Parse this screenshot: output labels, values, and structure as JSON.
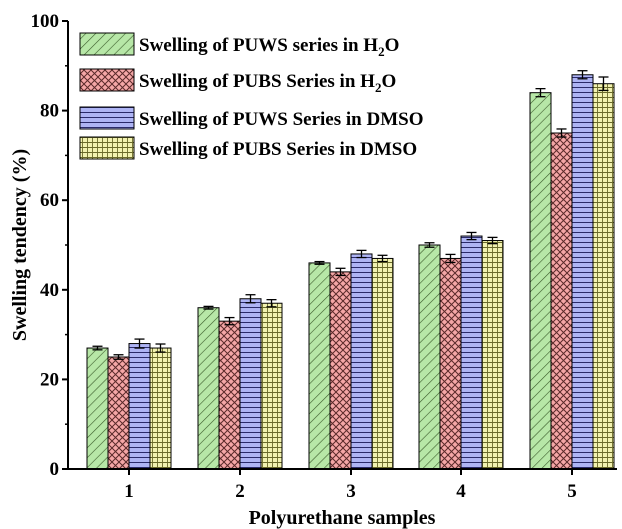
{
  "chart_data": {
    "type": "bar",
    "xlabel": "Polyurethane samples",
    "ylabel": "Swelling tendency (%)",
    "categories": [
      "1",
      "2",
      "3",
      "4",
      "5"
    ],
    "ylim": [
      0,
      100
    ],
    "yticks": [
      "0",
      "20",
      "40",
      "60",
      "80",
      "100"
    ],
    "legend_position": "top-left",
    "grid": false,
    "series": [
      {
        "name": "Swelling of PUWS series in H",
        "name_subscript": "2",
        "name_suffix": "O",
        "values": [
          27,
          36,
          46,
          50,
          84
        ],
        "errors": [
          0.4,
          0.3,
          0.3,
          0.5,
          0.9
        ],
        "color": "#b7e7a7",
        "pattern": "diagonal"
      },
      {
        "name": "Swelling of PUBS Series in H",
        "name_subscript": "2",
        "name_suffix": "O",
        "values": [
          25,
          33,
          44,
          47,
          75
        ],
        "errors": [
          0.5,
          0.8,
          0.8,
          0.9,
          0.9
        ],
        "color": "#f4a6a6",
        "pattern": "crosshatch"
      },
      {
        "name": "Swelling of PUWS Series in DMSO",
        "values": [
          28,
          38,
          48,
          52,
          88
        ],
        "errors": [
          1.0,
          0.9,
          0.8,
          0.8,
          0.9
        ],
        "color": "#aeb4f4",
        "pattern": "horizontal"
      },
      {
        "name": "Swelling of PUBS Series in DMSO",
        "values": [
          27,
          37,
          47,
          51,
          86
        ],
        "errors": [
          0.9,
          0.8,
          0.7,
          0.7,
          1.5
        ],
        "color": "#f2f2b0",
        "pattern": "grid"
      }
    ]
  }
}
